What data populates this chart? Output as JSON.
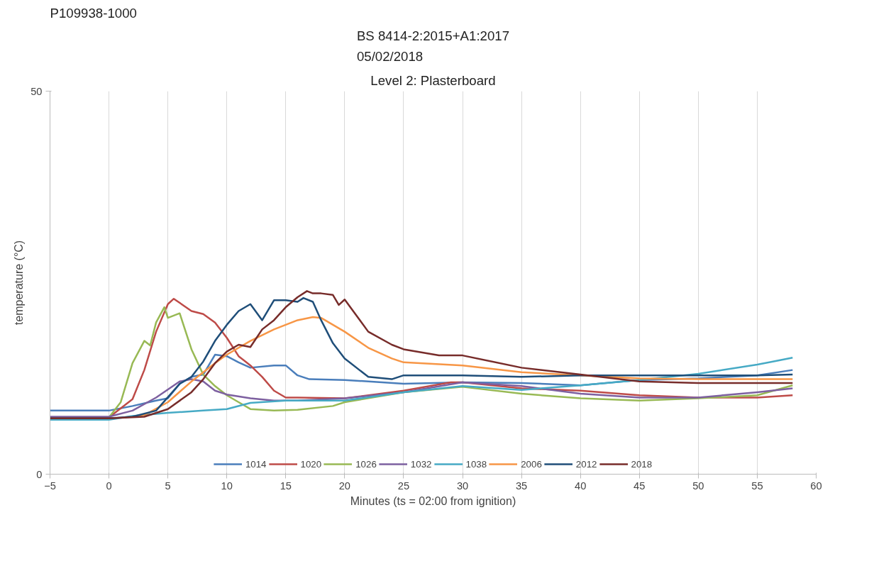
{
  "chart_data": {
    "type": "line",
    "title": "BS 8414-2:2015+A1:2017\n05/02/2018",
    "subtitle": "Level 2: Plasterboard",
    "annotations": [
      "P109938-1000"
    ],
    "xlabel": "Minutes (ts = 02:00 from ignition)",
    "ylabel": "temperature (°C)",
    "xlim": [
      -5,
      60
    ],
    "xticks": [
      -5,
      0,
      5,
      10,
      15,
      20,
      25,
      30,
      35,
      40,
      45,
      50,
      55,
      60
    ],
    "ylim": [
      0,
      50
    ],
    "yticks": [
      0,
      50
    ],
    "grid": "x",
    "legend": "bottom",
    "marker": "none",
    "line_style": "solid",
    "series": [
      {
        "name": "1014",
        "color": "#4a7ebb",
        "x": [
          -5,
          0,
          2,
          4,
          5,
          6,
          7,
          8,
          9,
          10,
          11,
          12,
          14,
          15,
          16,
          17,
          20,
          25,
          30,
          35,
          40,
          45,
          50,
          55,
          58
        ],
        "values": [
          8.3,
          8.3,
          8.9,
          9.6,
          9.9,
          11.8,
          12.7,
          13.0,
          15.6,
          15.4,
          14.6,
          13.9,
          14.2,
          14.2,
          12.9,
          12.4,
          12.3,
          11.8,
          12.0,
          11.9,
          11.6,
          12.3,
          12.5,
          12.9,
          13.6
        ]
      },
      {
        "name": "1020",
        "color": "#be4b48",
        "x": [
          -5,
          0,
          2,
          3,
          4,
          5,
          5.5,
          7,
          8,
          9,
          10,
          11,
          12,
          13,
          14,
          15,
          16,
          20,
          25,
          29,
          30,
          35,
          40,
          45,
          50,
          55,
          58
        ],
        "values": [
          7.4,
          7.4,
          9.8,
          13.6,
          18.6,
          22.2,
          22.9,
          21.3,
          20.9,
          19.8,
          17.8,
          15.4,
          14.2,
          12.7,
          10.9,
          10.0,
          10.0,
          9.9,
          10.9,
          12.0,
          12.0,
          11.2,
          10.9,
          10.3,
          10.0,
          10.0,
          10.3
        ]
      },
      {
        "name": "1026",
        "color": "#98b954",
        "x": [
          0,
          1,
          2,
          3,
          3.5,
          4,
          4.7,
          5,
          6,
          7,
          8,
          9,
          10,
          11,
          12,
          14,
          16,
          19,
          20,
          25,
          30,
          35,
          40,
          45,
          50,
          55,
          58
        ],
        "values": [
          7.4,
          9.4,
          14.5,
          17.4,
          16.8,
          19.8,
          21.8,
          20.4,
          21.0,
          16.3,
          13.0,
          11.5,
          10.3,
          9.4,
          8.5,
          8.3,
          8.4,
          8.9,
          9.4,
          10.7,
          11.4,
          10.5,
          9.9,
          9.6,
          9.9,
          10.3,
          11.6
        ]
      },
      {
        "name": "1032",
        "color": "#7d60a0",
        "x": [
          -5,
          0,
          2,
          4,
          6,
          7,
          8,
          9,
          10,
          12,
          14,
          16,
          20,
          25,
          30,
          35,
          40,
          45,
          50,
          55,
          58
        ],
        "values": [
          7.5,
          7.5,
          8.3,
          10.0,
          12.1,
          12.4,
          12.1,
          10.9,
          10.4,
          9.9,
          9.6,
          9.6,
          9.9,
          10.7,
          12.0,
          11.5,
          10.5,
          10.0,
          10.0,
          10.7,
          11.2
        ]
      },
      {
        "name": "1038",
        "color": "#46aac5",
        "x": [
          -5,
          0,
          2,
          5,
          8,
          10,
          12,
          15,
          20,
          25,
          30,
          35,
          40,
          45,
          50,
          55,
          58
        ],
        "values": [
          7.1,
          7.1,
          7.6,
          8.0,
          8.3,
          8.5,
          9.3,
          9.6,
          9.6,
          10.7,
          11.5,
          11.0,
          11.6,
          12.3,
          13.1,
          14.3,
          15.2
        ]
      },
      {
        "name": "2006",
        "color": "#f79646",
        "x": [
          2,
          3,
          5,
          7,
          9,
          10,
          12,
          14,
          16,
          17.3,
          18,
          20,
          22,
          24,
          25,
          30,
          35,
          40,
          45,
          50,
          55,
          58
        ],
        "values": [
          7.5,
          7.7,
          9.4,
          12.1,
          14.5,
          15.6,
          17.4,
          18.9,
          20.1,
          20.5,
          20.4,
          18.6,
          16.5,
          15.1,
          14.6,
          14.2,
          13.3,
          12.9,
          12.5,
          12.4,
          12.4,
          12.4
        ]
      },
      {
        "name": "2012",
        "color": "#1f4e79",
        "x": [
          -5,
          0,
          2,
          4,
          6,
          7,
          8,
          9,
          10,
          11,
          12,
          13,
          14,
          15,
          16,
          16.5,
          17.3,
          18,
          19,
          20,
          22,
          24,
          25,
          30,
          35,
          40,
          45,
          50,
          55,
          58
        ],
        "values": [
          7.3,
          7.3,
          7.5,
          8.3,
          11.8,
          12.7,
          14.7,
          17.4,
          19.5,
          21.3,
          22.2,
          20.1,
          22.7,
          22.7,
          22.5,
          23.0,
          22.5,
          20.1,
          17.1,
          15.1,
          12.7,
          12.4,
          12.9,
          12.9,
          12.7,
          12.9,
          12.9,
          12.9,
          12.9,
          13.0
        ]
      },
      {
        "name": "2018",
        "color": "#772c2a",
        "x": [
          -5,
          0,
          3,
          5,
          7,
          8,
          9,
          10,
          11,
          12,
          13,
          14,
          15,
          16,
          16.8,
          17.3,
          18,
          19,
          19.5,
          20,
          22,
          24,
          25,
          28,
          30,
          35,
          40,
          45,
          50,
          55,
          58
        ],
        "values": [
          7.3,
          7.3,
          7.5,
          8.5,
          10.7,
          12.4,
          14.5,
          16.0,
          16.9,
          16.6,
          18.9,
          20.1,
          21.8,
          23.1,
          23.9,
          23.6,
          23.6,
          23.4,
          22.1,
          22.8,
          18.6,
          16.9,
          16.3,
          15.5,
          15.5,
          13.9,
          13.0,
          12.1,
          11.9,
          11.9,
          11.9
        ]
      }
    ]
  }
}
